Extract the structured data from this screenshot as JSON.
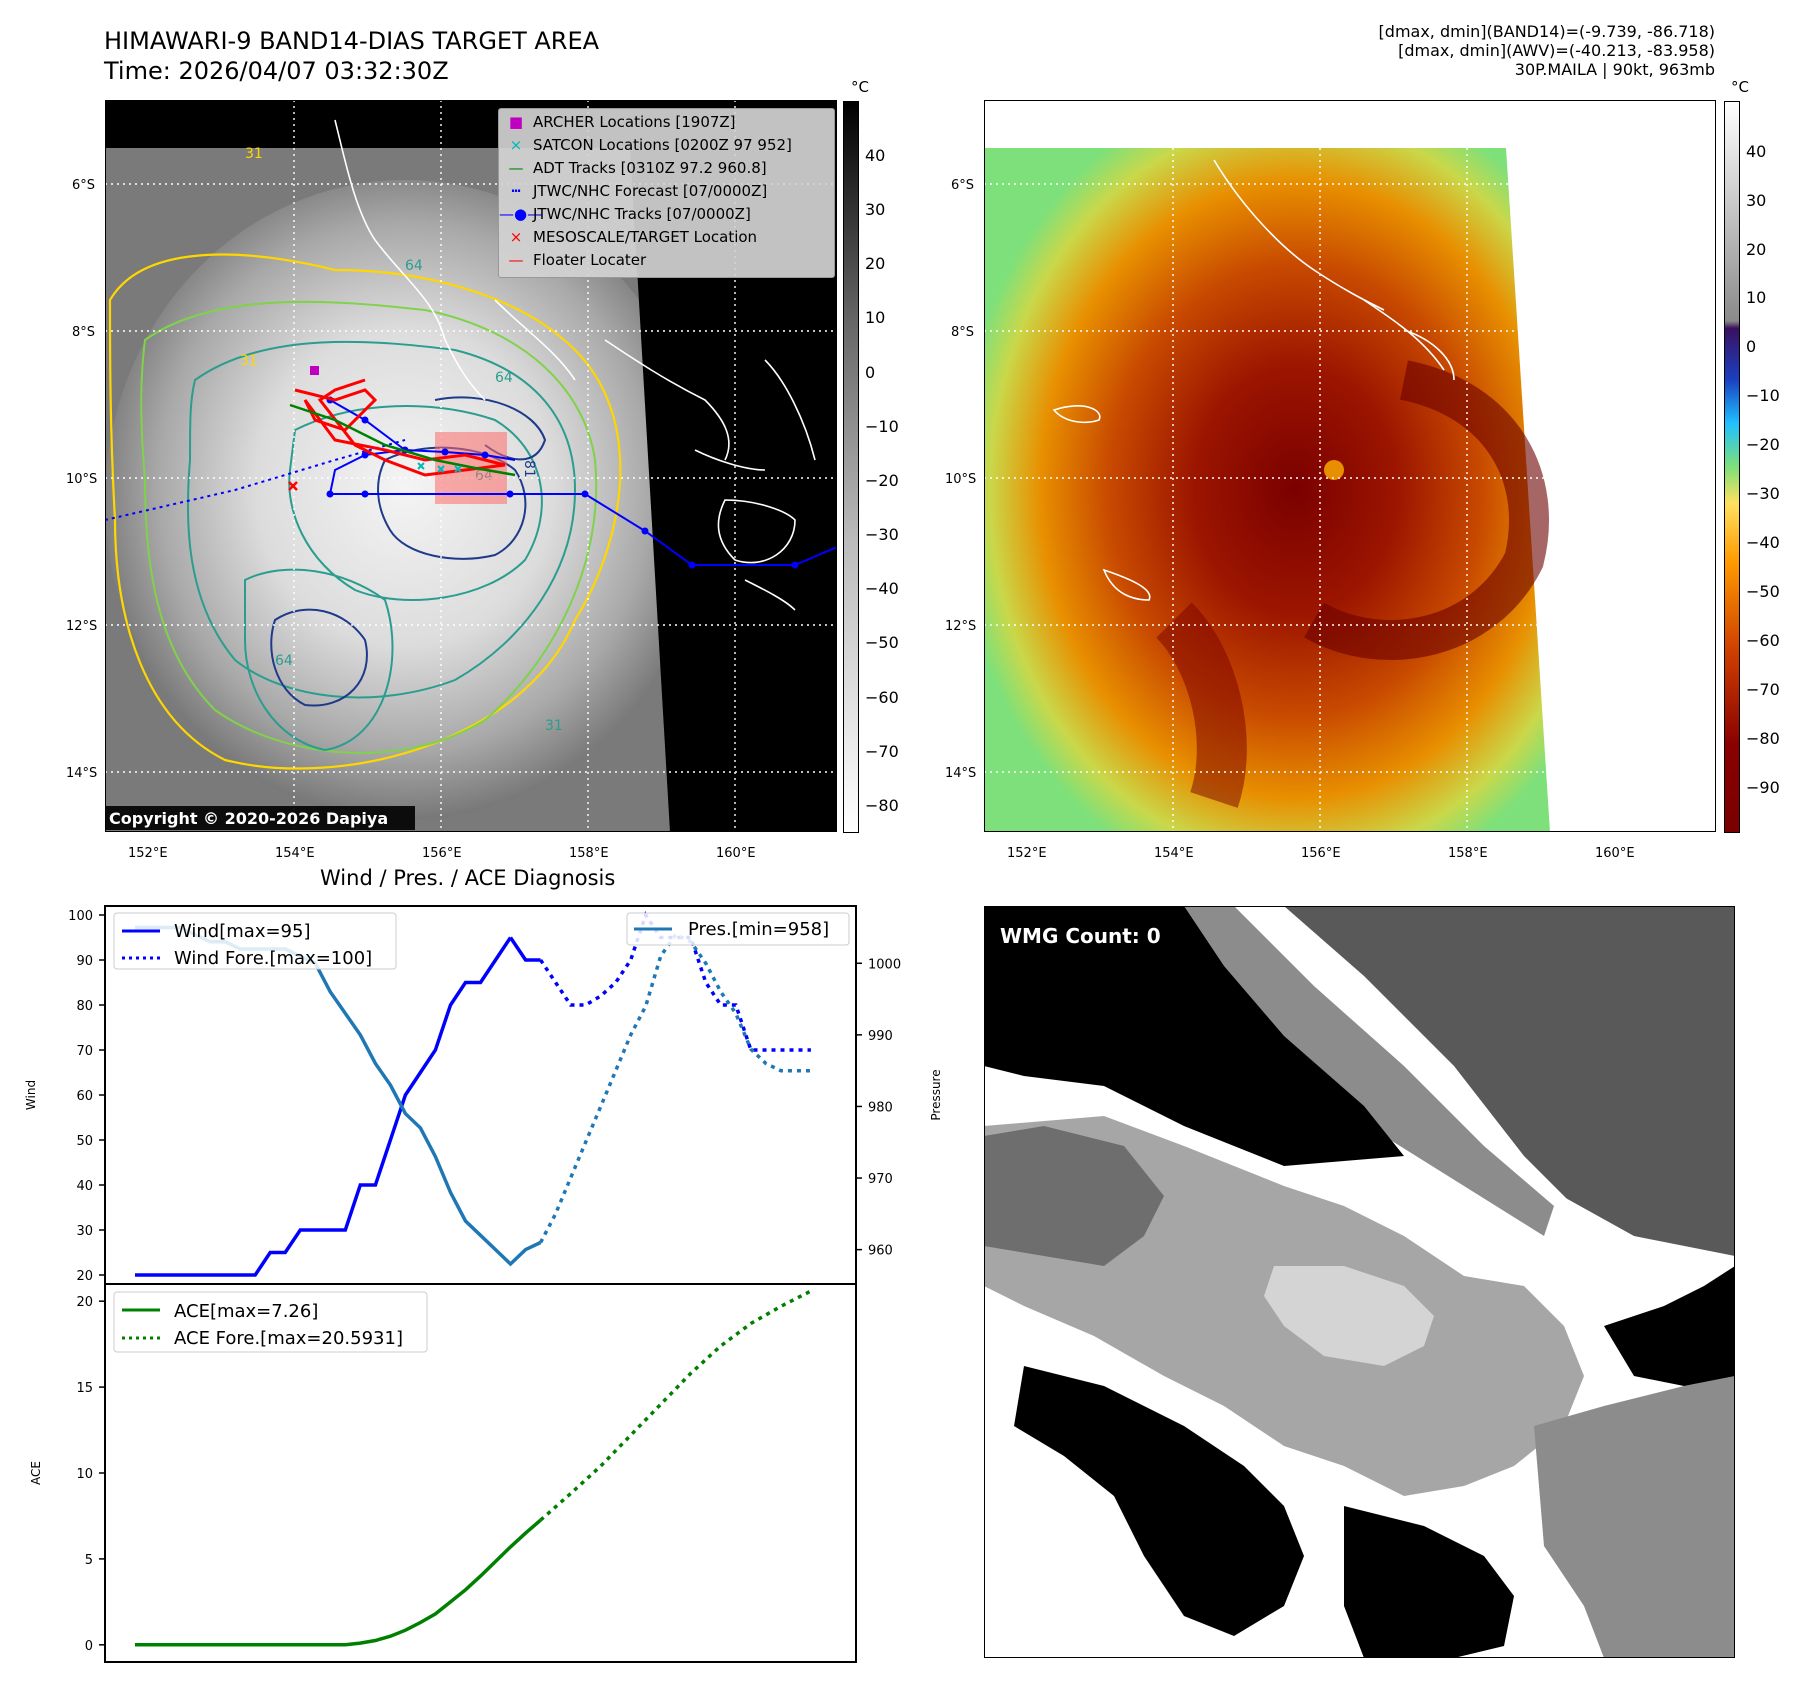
{
  "header": {
    "title_line1": "HIMAWARI-9 BAND14-DIAS TARGET AREA",
    "title_line2": "Time: 2026/04/07 03:32:30Z",
    "stats_line1": "[dmax, dmin](BAND14)=(-9.739, -86.718)",
    "stats_line2": "[dmax, dmin](AWV)=(-40.213, -83.958)",
    "stats_line3": "30P.MAILA | 90kt, 963mb"
  },
  "map_axes": {
    "lat_labels": [
      "6°S",
      "8°S",
      "10°S",
      "12°S",
      "14°S"
    ],
    "lon_labels": [
      "152°E",
      "154°E",
      "156°E",
      "158°E",
      "160°E"
    ]
  },
  "ir_panel": {
    "copyright": "Copyright © 2020-2026 Dapiya",
    "contour_labels": [
      "31",
      "31",
      "64",
      "64",
      "64",
      "64",
      "81",
      "31"
    ],
    "legend": [
      {
        "label": "ARCHER Locations [1907Z]",
        "marker": "square",
        "color": "#c000c0"
      },
      {
        "label": "SATCON Locations [0200Z 97 952]",
        "marker": "x",
        "color": "#00b8b8"
      },
      {
        "label": "ADT Tracks [0310Z 97.2 960.8]",
        "marker": "line",
        "color": "#008000"
      },
      {
        "label": "JTWC/NHC Forecast [07/0000Z]",
        "marker": "dotted",
        "color": "#0000ff"
      },
      {
        "label": "JTWC/NHC Tracks [07/0000Z]",
        "marker": "line-dot",
        "color": "#0000ff"
      },
      {
        "label": "MESOSCALE/TARGET Location",
        "marker": "x",
        "color": "#ff0000"
      },
      {
        "label": "Floater Locater",
        "marker": "line",
        "color": "#ff0000"
      }
    ],
    "colorbar": {
      "unit": "°C",
      "ticks": [
        "40",
        "30",
        "20",
        "10",
        "0",
        "−10",
        "−20",
        "−30",
        "−40",
        "−50",
        "−60",
        "−70",
        "−80"
      ]
    }
  },
  "color_panel": {
    "colorbar": {
      "unit": "°C",
      "ticks": [
        "40",
        "30",
        "20",
        "10",
        "0",
        "−10",
        "−20",
        "−30",
        "−40",
        "−50",
        "−60",
        "−70",
        "−80",
        "−90"
      ]
    }
  },
  "wmg_panel": {
    "label": "WMG Count: 0"
  },
  "diagnosis": {
    "title": "Wind / Pres. / ACE Diagnosis"
  },
  "chart_data": [
    {
      "type": "line",
      "title": "Wind / Pres. / ACE Diagnosis",
      "ylabel": "Wind",
      "y2label": "Pressure",
      "ylim": [
        18,
        102
      ],
      "y2lim": [
        955.2,
        1008
      ],
      "yticks": [
        20,
        30,
        40,
        50,
        60,
        70,
        80,
        90,
        100
      ],
      "y2ticks": [
        960,
        970,
        980,
        990,
        1000
      ],
      "legend_left": [
        "Wind[max=95]",
        "Wind Fore.[max=100]"
      ],
      "legend_right": [
        "Pres.[min=958]"
      ],
      "series": [
        {
          "name": "Wind[max=95]",
          "color": "#0000ff",
          "style": "solid",
          "axis": "left",
          "x": [
            0,
            1,
            2,
            3,
            4,
            5,
            6,
            7,
            8,
            9,
            10,
            11,
            12,
            13,
            14,
            15,
            16,
            17,
            18,
            19,
            20,
            21,
            22,
            23,
            24,
            25
          ],
          "values": [
            20,
            20,
            20,
            20,
            20,
            20,
            20,
            20,
            20,
            25,
            25,
            30,
            30,
            30,
            30,
            40,
            40,
            50,
            60,
            65,
            70,
            80,
            85,
            85,
            90,
            95
          ]
        },
        {
          "name": "Wind[max=95]",
          "color": "#0000ff",
          "style": "solid",
          "axis": "left",
          "x": [
            25,
            26,
            27
          ],
          "values": [
            95,
            90,
            90
          ]
        },
        {
          "name": "Wind Fore.[max=100]",
          "color": "#0000ff",
          "style": "dotted",
          "axis": "left",
          "x": [
            27,
            28,
            29,
            30,
            31,
            32,
            33,
            34,
            35,
            36,
            37,
            38,
            39,
            40,
            41,
            42,
            43,
            44,
            45
          ],
          "values": [
            90,
            85,
            80,
            80,
            82,
            85,
            90,
            100,
            95,
            95,
            95,
            85,
            80,
            80,
            70,
            70,
            70,
            70,
            70
          ]
        },
        {
          "name": "Pres.[min=958]",
          "color": "#1f77b4",
          "style": "solid",
          "axis": "right",
          "x": [
            0,
            1,
            2,
            3,
            4,
            5,
            6,
            7,
            8,
            9,
            10,
            11,
            12,
            13,
            14,
            15,
            16,
            17,
            18,
            19,
            20,
            21,
            22,
            23,
            24,
            25,
            26,
            27
          ],
          "values": [
            1005,
            1005,
            1005,
            1005,
            1004,
            1003,
            1003,
            1002,
            1002,
            1002,
            1002,
            1001,
            1000,
            996,
            993,
            990,
            986,
            983,
            979,
            977,
            973,
            968,
            964,
            962,
            960,
            958,
            960,
            961
          ]
        },
        {
          "name": "Pres.[min=958]",
          "color": "#1f77b4",
          "style": "dotted",
          "axis": "right",
          "x": [
            27,
            28,
            29,
            30,
            31,
            32,
            33,
            34,
            35,
            36,
            37,
            38,
            39,
            40,
            41,
            42,
            43,
            44,
            45
          ],
          "values": [
            961,
            965,
            970,
            975,
            980,
            985,
            990,
            994,
            1001,
            1004,
            1003,
            1000,
            996,
            993,
            988,
            986,
            985,
            985,
            985
          ]
        }
      ]
    },
    {
      "type": "line",
      "ylabel": "ACE",
      "ylim": [
        -1,
        21
      ],
      "yticks": [
        0,
        5,
        10,
        15,
        20
      ],
      "legend": [
        "ACE[max=7.26]",
        "ACE Fore.[max=20.5931]"
      ],
      "series": [
        {
          "name": "ACE[max=7.26]",
          "color": "#008000",
          "style": "solid",
          "x": [
            0,
            2,
            4,
            6,
            8,
            10,
            12,
            14,
            15,
            16,
            17,
            18,
            19,
            20,
            21,
            22,
            23,
            24,
            25,
            26,
            27
          ],
          "values": [
            0,
            0,
            0,
            0,
            0,
            0,
            0,
            0,
            0.1,
            0.25,
            0.5,
            0.85,
            1.3,
            1.8,
            2.5,
            3.2,
            4.0,
            4.85,
            5.7,
            6.5,
            7.26
          ]
        },
        {
          "name": "ACE Fore.[max=20.5931]",
          "color": "#008000",
          "style": "dotted",
          "x": [
            27,
            29,
            31,
            33,
            35,
            37,
            39,
            41,
            43,
            45
          ],
          "values": [
            7.26,
            8.8,
            10.4,
            12.2,
            14.0,
            15.8,
            17.4,
            18.7,
            19.7,
            20.59
          ]
        }
      ]
    }
  ]
}
